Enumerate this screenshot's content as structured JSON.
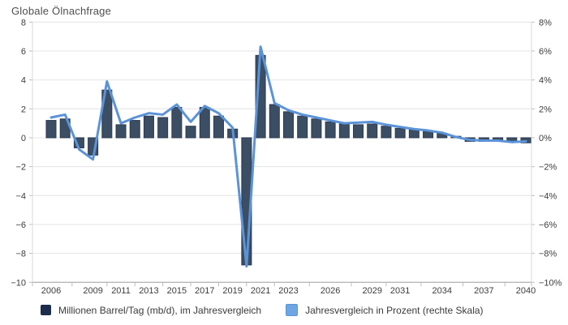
{
  "title": "Globale Ölnachfrage",
  "legend": {
    "items": [
      {
        "label": "Millionen Barrel/Tag (mb/d), im Jahresvergleich",
        "color": "#1b2c4c"
      },
      {
        "label": "Jahresvergleich in Prozent (rechte Skala)",
        "color": "#6fa5e2"
      }
    ]
  },
  "colors": {
    "bar_fill": "#3c4e63",
    "bar_stroke": "#2b3a50",
    "line": "#5b93d8",
    "grid": "#e4e4e4",
    "axis": "#9e9e9e",
    "axis_side": "#d9d9d9",
    "tick": "#bdbdbd",
    "label": "#3d3d3d",
    "title": "#4f4f4f"
  },
  "chart_data": {
    "type": "bar",
    "title": "Globale Ölnachfrage",
    "x": [
      2006,
      2007,
      2008,
      2009,
      2010,
      2011,
      2012,
      2013,
      2014,
      2015,
      2016,
      2017,
      2018,
      2019,
      2020,
      2021,
      2022,
      2023,
      2024,
      2025,
      2026,
      2027,
      2028,
      2029,
      2030,
      2031,
      2032,
      2033,
      2034,
      2035,
      2036,
      2037,
      2038,
      2039,
      2040
    ],
    "series": [
      {
        "name": "Millionen Barrel/Tag (mb/d), im Jahresvergleich",
        "type": "bar",
        "axis": "left",
        "unit": "mb/d",
        "values": [
          1.2,
          1.3,
          -0.7,
          -1.2,
          3.3,
          0.9,
          1.2,
          1.5,
          1.4,
          2.1,
          0.8,
          2.1,
          1.5,
          0.6,
          -8.8,
          5.7,
          2.3,
          1.8,
          1.5,
          1.3,
          1.1,
          0.95,
          0.9,
          0.95,
          0.8,
          0.65,
          0.55,
          0.45,
          0.3,
          0.1,
          -0.25,
          -0.25,
          -0.25,
          -0.3,
          -0.35
        ]
      },
      {
        "name": "Jahresvergleich in Prozent (rechte Skala)",
        "type": "line",
        "axis": "right",
        "unit": "%",
        "values": [
          1.4,
          1.6,
          -0.8,
          -1.5,
          3.9,
          1.0,
          1.4,
          1.7,
          1.6,
          2.3,
          1.1,
          2.2,
          1.7,
          0.7,
          -8.9,
          6.3,
          2.4,
          1.9,
          1.6,
          1.4,
          1.2,
          1.0,
          1.05,
          1.1,
          0.9,
          0.75,
          0.6,
          0.5,
          0.35,
          0.05,
          -0.15,
          -0.2,
          -0.2,
          -0.3,
          -0.25
        ]
      }
    ],
    "ylim_left": [
      -10,
      8
    ],
    "ylim_right": [
      -10,
      8
    ],
    "ytick_values": [
      8,
      6,
      4,
      2,
      0,
      -2,
      -4,
      -6,
      -8,
      -10
    ],
    "yticks_left_labels": [
      "8",
      "6",
      "4",
      "2",
      "0",
      "−2",
      "−4",
      "−6",
      "−8",
      "−10"
    ],
    "yticks_right_labels": [
      "8%",
      "6%",
      "4%",
      "2%",
      "0%",
      "−2%",
      "−4%",
      "−6%",
      "−8%",
      "−10%"
    ],
    "xtick_labels": [
      "2006",
      "2009",
      "2011",
      "2013",
      "2015",
      "2017",
      "2019",
      "2021",
      "2023",
      "2026",
      "2029",
      "2031",
      "2034",
      "2037",
      "2040"
    ],
    "grid": true,
    "legend_position": "bottom"
  }
}
